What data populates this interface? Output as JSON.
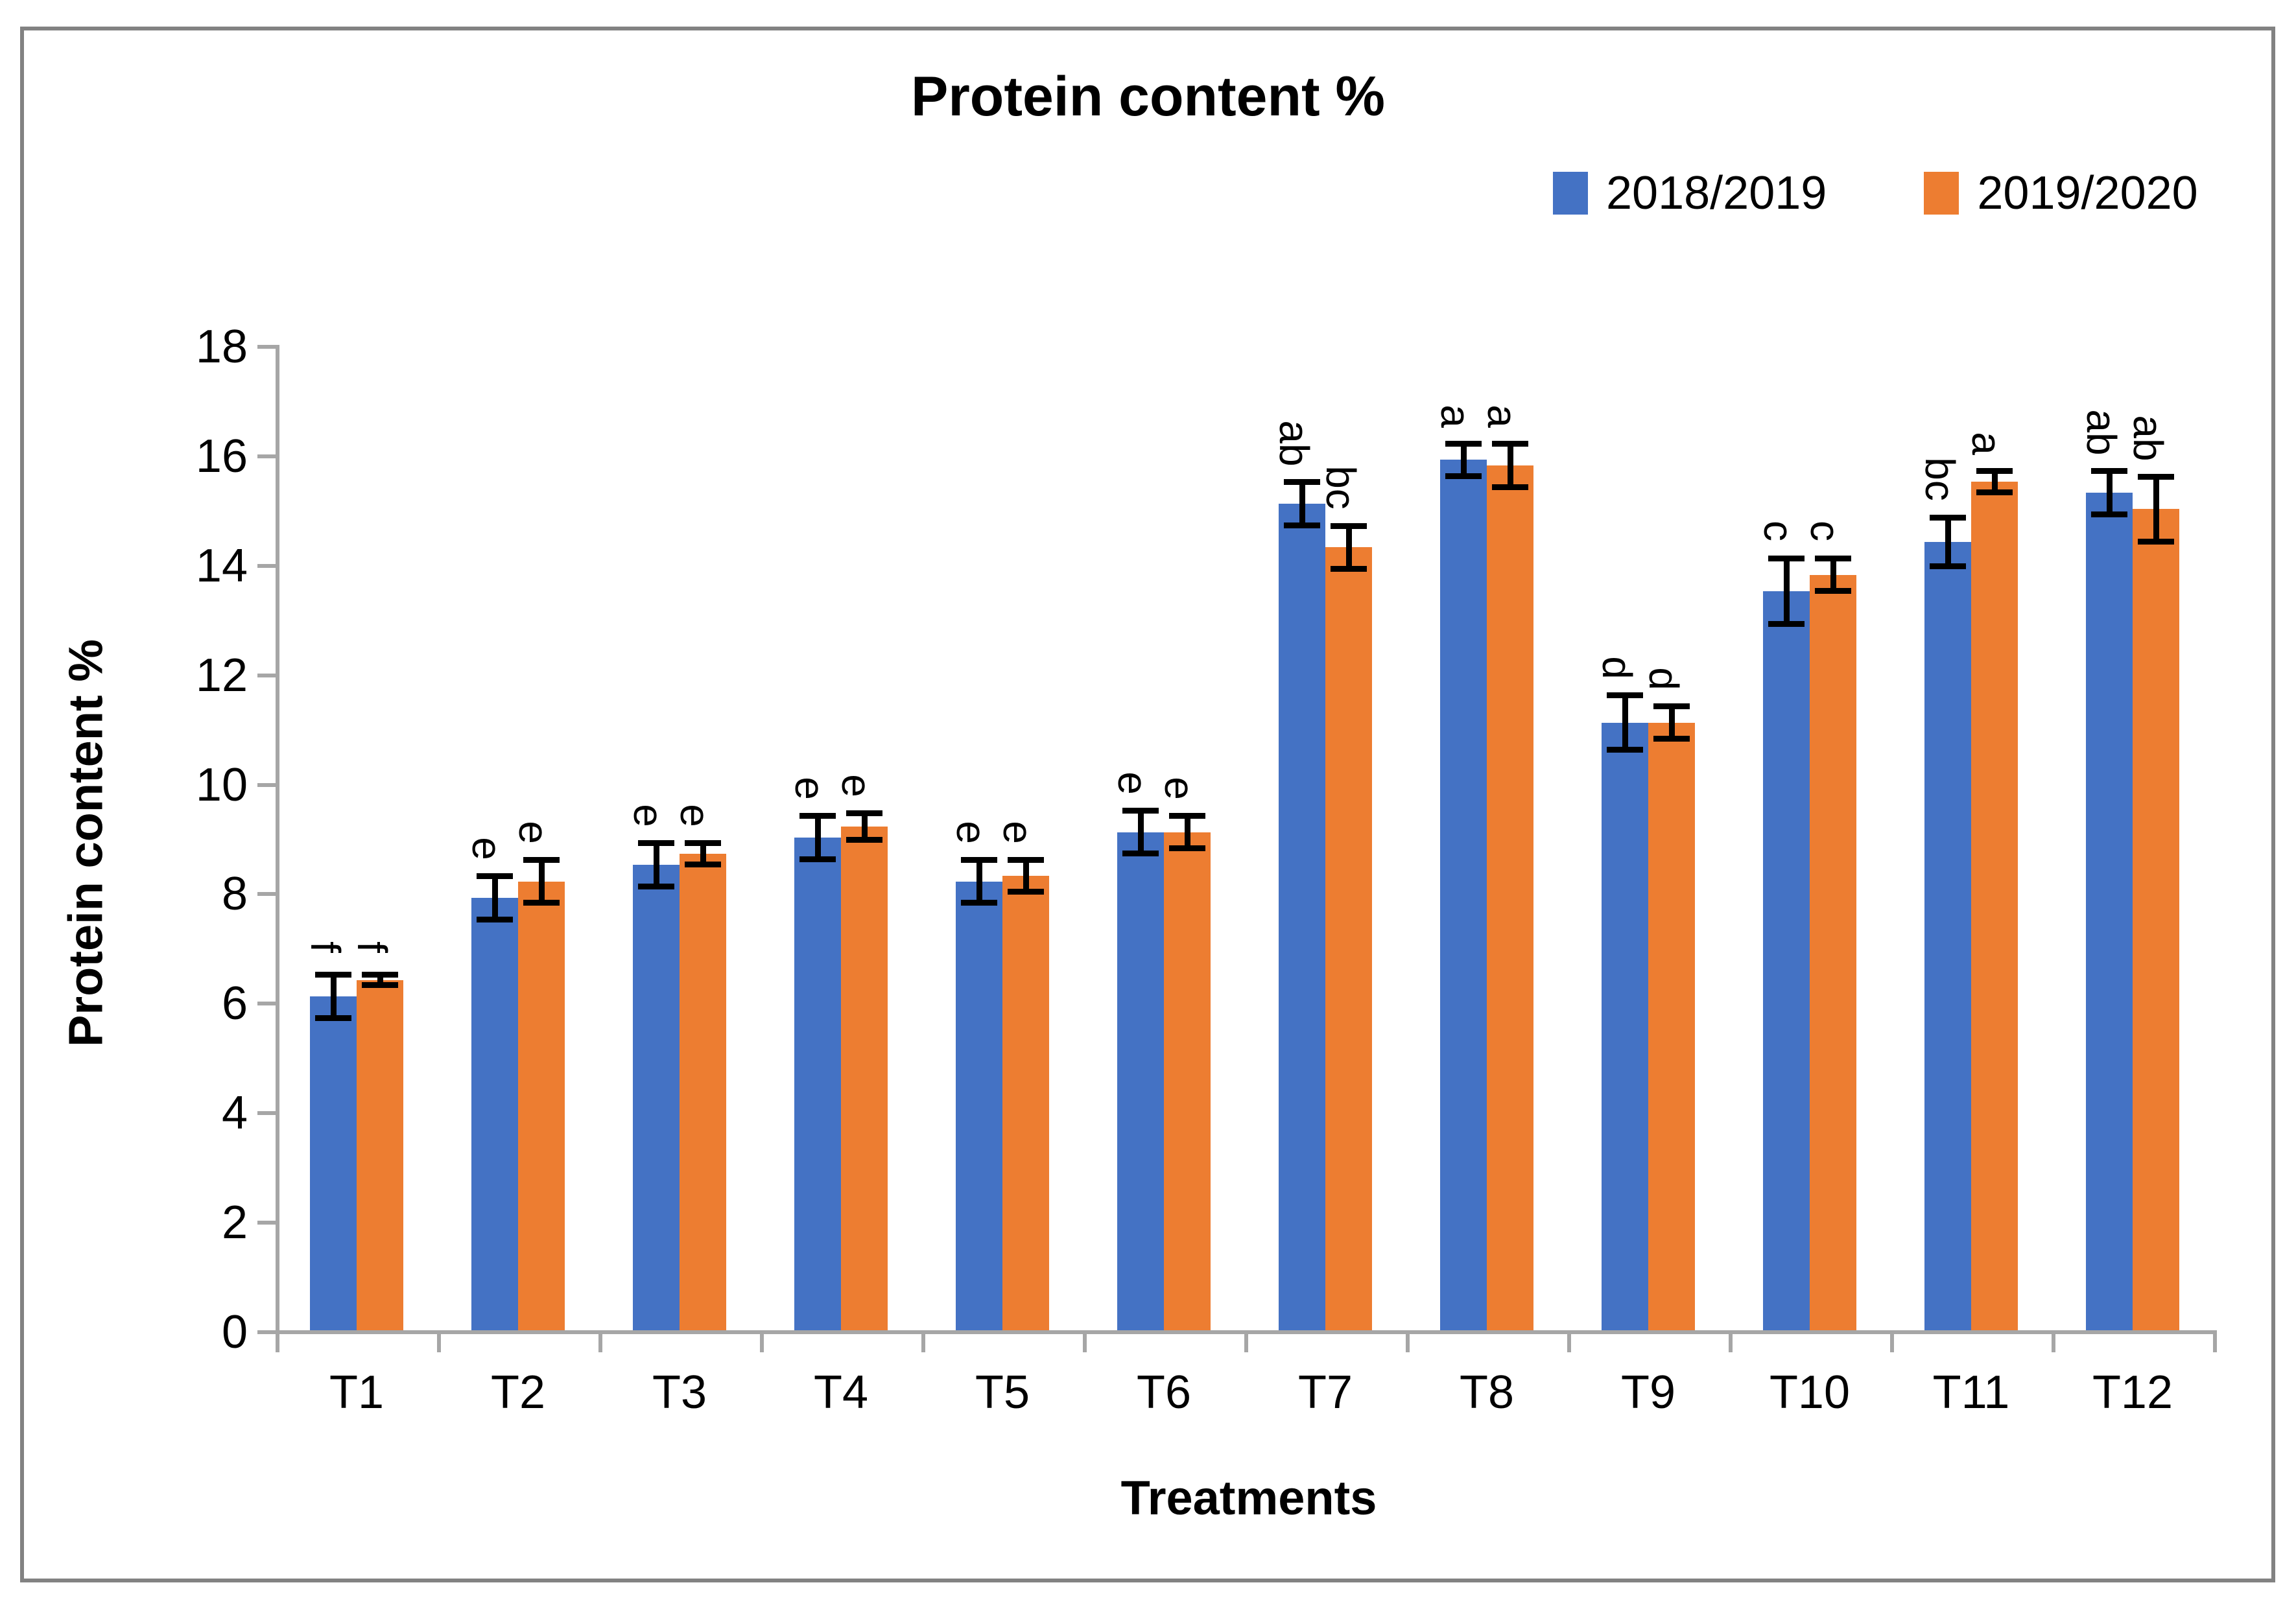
{
  "chart_data": {
    "type": "bar",
    "title": "Protein content %",
    "xlabel": "Treatments",
    "ylabel": "Protein content %",
    "ylim": [
      0,
      18
    ],
    "y_step": 2,
    "grid": false,
    "legend_position": "top-right",
    "categories": [
      "T1",
      "T2",
      "T3",
      "T4",
      "T5",
      "T6",
      "T7",
      "T8",
      "T9",
      "T10",
      "T11",
      "T12"
    ],
    "series": [
      {
        "name": "2018/2019",
        "color": "#4472C4",
        "values": [
          6.1,
          7.9,
          8.5,
          9.0,
          8.2,
          9.1,
          15.1,
          15.9,
          11.1,
          13.5,
          14.4,
          15.3
        ],
        "errors": [
          0.4,
          0.4,
          0.4,
          0.4,
          0.4,
          0.4,
          0.4,
          0.3,
          0.5,
          0.6,
          0.45,
          0.4
        ],
        "letters": [
          "f",
          "e",
          "e",
          "e",
          "e",
          "e",
          "ab",
          "a",
          "d",
          "c",
          "bc",
          "ab"
        ]
      },
      {
        "name": "2019/2020",
        "color": "#ED7D31",
        "values": [
          6.4,
          8.2,
          8.7,
          9.2,
          8.3,
          9.1,
          14.3,
          15.8,
          11.1,
          13.8,
          15.5,
          15.0
        ],
        "errors": [
          0.1,
          0.4,
          0.2,
          0.25,
          0.3,
          0.3,
          0.4,
          0.4,
          0.3,
          0.3,
          0.2,
          0.6
        ],
        "letters": [
          "f",
          "e",
          "e",
          "e",
          "e",
          "e",
          "bc",
          "a",
          "d",
          "c",
          "a",
          "ab"
        ]
      }
    ]
  },
  "colors": {
    "axis": "#a6a6a6",
    "frame_border": "#828282",
    "error_bar": "#000000",
    "text": "#000000"
  }
}
